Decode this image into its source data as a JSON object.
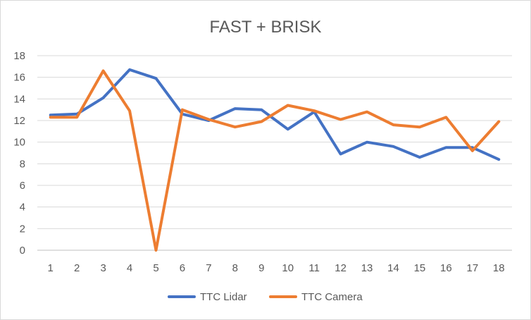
{
  "chart_data": {
    "type": "line",
    "title": "FAST + BRISK",
    "xlabel": "",
    "ylabel": "",
    "categories": [
      "1",
      "2",
      "3",
      "4",
      "5",
      "6",
      "7",
      "8",
      "9",
      "10",
      "11",
      "12",
      "13",
      "14",
      "15",
      "16",
      "17",
      "18"
    ],
    "ylim": [
      0,
      18
    ],
    "yticks": [
      0,
      2,
      4,
      6,
      8,
      10,
      12,
      14,
      16,
      18
    ],
    "grid": true,
    "legend_position": "bottom",
    "series": [
      {
        "name": "TTC Lidar",
        "color": "#4472c4",
        "values": [
          12.5,
          12.6,
          14.1,
          16.7,
          15.9,
          12.6,
          12.0,
          13.1,
          13.0,
          11.2,
          12.8,
          8.9,
          10.0,
          9.6,
          8.6,
          9.5,
          9.5,
          8.4
        ]
      },
      {
        "name": "TTC Camera",
        "color": "#ed7d31",
        "values": [
          12.3,
          12.3,
          16.6,
          12.9,
          0.0,
          13.0,
          12.1,
          11.4,
          11.9,
          13.4,
          12.9,
          12.1,
          12.8,
          11.6,
          11.4,
          12.3,
          9.2,
          11.9
        ]
      }
    ]
  }
}
